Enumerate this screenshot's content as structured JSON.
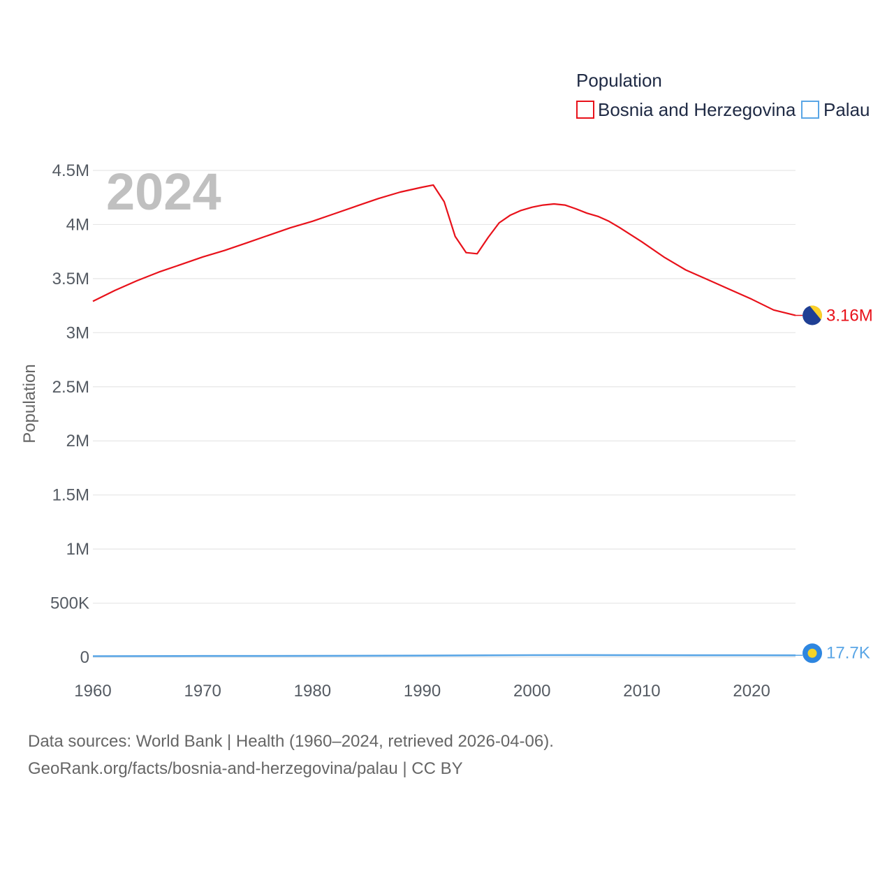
{
  "chart_data": {
    "type": "line",
    "legend_title": "Population",
    "legend_position": "top-right",
    "year_label": "2024",
    "ylabel": "Population",
    "xlabel": "",
    "xlim": [
      1960,
      2024
    ],
    "ylim": [
      0,
      4500000
    ],
    "x_ticks": [
      {
        "value": 1960,
        "label": "1960"
      },
      {
        "value": 1970,
        "label": "1970"
      },
      {
        "value": 1980,
        "label": "1980"
      },
      {
        "value": 1990,
        "label": "1990"
      },
      {
        "value": 2000,
        "label": "2000"
      },
      {
        "value": 2010,
        "label": "2010"
      },
      {
        "value": 2020,
        "label": "2020"
      }
    ],
    "y_ticks": [
      {
        "value": 0,
        "label": "0"
      },
      {
        "value": 500000,
        "label": "500K"
      },
      {
        "value": 1000000,
        "label": "1M"
      },
      {
        "value": 1500000,
        "label": "1.5M"
      },
      {
        "value": 2000000,
        "label": "2M"
      },
      {
        "value": 2500000,
        "label": "2.5M"
      },
      {
        "value": 3000000,
        "label": "3M"
      },
      {
        "value": 3500000,
        "label": "3.5M"
      },
      {
        "value": 4000000,
        "label": "4M"
      },
      {
        "value": 4500000,
        "label": "4.5M"
      }
    ],
    "grid": true,
    "series": [
      {
        "name": "Bosnia and Herzegovina",
        "color": "#e8111a",
        "end_label": "3.16M",
        "flag_icon": "bosnia-flag-icon",
        "points": [
          [
            1960,
            3290000
          ],
          [
            1962,
            3390000
          ],
          [
            1964,
            3480000
          ],
          [
            1966,
            3560000
          ],
          [
            1968,
            3630000
          ],
          [
            1970,
            3700000
          ],
          [
            1972,
            3760000
          ],
          [
            1974,
            3830000
          ],
          [
            1976,
            3900000
          ],
          [
            1978,
            3970000
          ],
          [
            1980,
            4030000
          ],
          [
            1982,
            4100000
          ],
          [
            1984,
            4170000
          ],
          [
            1986,
            4240000
          ],
          [
            1988,
            4300000
          ],
          [
            1990,
            4345000
          ],
          [
            1991,
            4365000
          ],
          [
            1992,
            4210000
          ],
          [
            1993,
            3890000
          ],
          [
            1994,
            3740000
          ],
          [
            1995,
            3730000
          ],
          [
            1996,
            3880000
          ],
          [
            1997,
            4015000
          ],
          [
            1998,
            4085000
          ],
          [
            1999,
            4130000
          ],
          [
            2000,
            4160000
          ],
          [
            2001,
            4180000
          ],
          [
            2002,
            4190000
          ],
          [
            2003,
            4180000
          ],
          [
            2004,
            4145000
          ],
          [
            2005,
            4105000
          ],
          [
            2006,
            4075000
          ],
          [
            2007,
            4030000
          ],
          [
            2008,
            3970000
          ],
          [
            2010,
            3840000
          ],
          [
            2012,
            3700000
          ],
          [
            2014,
            3580000
          ],
          [
            2016,
            3490000
          ],
          [
            2018,
            3400000
          ],
          [
            2020,
            3310000
          ],
          [
            2022,
            3210000
          ],
          [
            2024,
            3160000
          ]
        ]
      },
      {
        "name": "Palau",
        "color": "#5aa6e6",
        "end_label": "17.7K",
        "flag_icon": "palau-flag-icon",
        "points": [
          [
            1960,
            9600
          ],
          [
            1970,
            11500
          ],
          [
            1980,
            12300
          ],
          [
            1990,
            15100
          ],
          [
            2000,
            19200
          ],
          [
            2005,
            19900
          ],
          [
            2010,
            18700
          ],
          [
            2015,
            18100
          ],
          [
            2020,
            18000
          ],
          [
            2024,
            17700
          ]
        ]
      }
    ],
    "source_line_1": "Data sources: World Bank | Health (1960–2024, retrieved 2026-04-06).",
    "source_line_2": "GeoRank.org/facts/bosnia-and-herzegovina/palau | CC BY"
  }
}
